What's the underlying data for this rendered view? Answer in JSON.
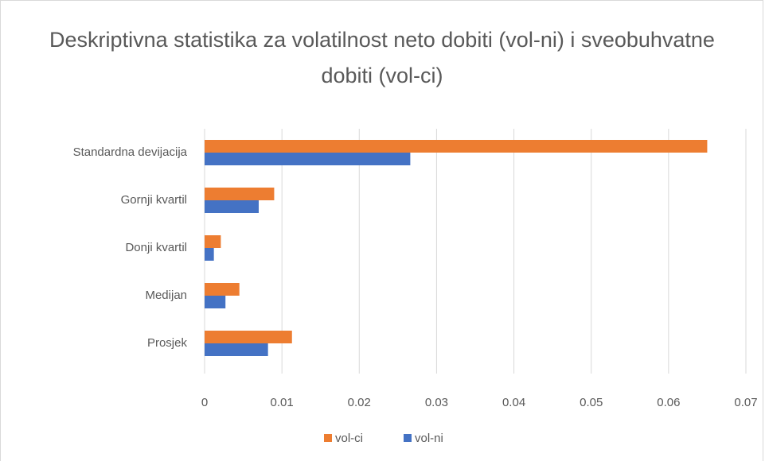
{
  "chart_data": {
    "type": "hbar",
    "title": "Deskriptivna statistika za volatilnost neto dobiti (vol-ni) i sveobuhvatne dobiti (vol-ci)",
    "categories": [
      "Standardna devijacija",
      "Gornji kvartil",
      "Donji kvartil",
      "Medijan",
      "Prosjek"
    ],
    "series": [
      {
        "name": "vol-ci",
        "color": "#ed7d31",
        "values": [
          0.065,
          0.009,
          0.0021,
          0.0045,
          0.0113
        ]
      },
      {
        "name": "vol-ni",
        "color": "#4472c4",
        "values": [
          0.0266,
          0.007,
          0.0012,
          0.0027,
          0.0082
        ]
      }
    ],
    "xlim": [
      0,
      0.07
    ],
    "xticks": [
      0,
      0.01,
      0.02,
      0.03,
      0.04,
      0.05,
      0.06,
      0.07
    ],
    "grid": true,
    "legend": "bottom"
  }
}
